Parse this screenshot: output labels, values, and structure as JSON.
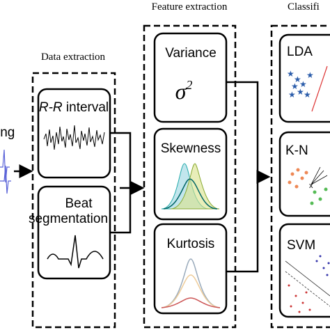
{
  "header_left": "ing",
  "stages": [
    {
      "title": "Data extraction",
      "boxes": [
        {
          "label_italic": "R-R",
          "label": "interval"
        },
        {
          "label_line1": "Beat",
          "label_line2": "segmentation"
        }
      ]
    },
    {
      "title": "Feature extraction",
      "boxes": [
        {
          "label": "Variance",
          "symbol": "σ",
          "superscript": "2"
        },
        {
          "label": "Skewness"
        },
        {
          "label": "Kurtosis"
        }
      ]
    },
    {
      "title": "Classifi",
      "boxes": [
        {
          "label": "LDA"
        },
        {
          "label": "K-N"
        },
        {
          "label": "SVM"
        }
      ]
    }
  ]
}
